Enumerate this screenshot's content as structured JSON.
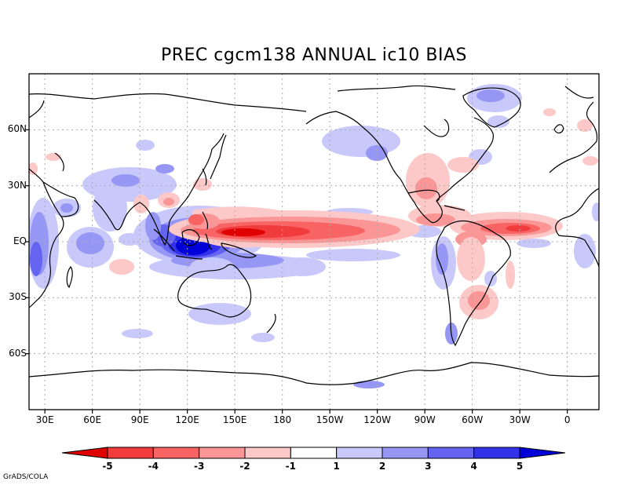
{
  "title": "PREC cgcm138 ANNUAL ic10 BIAS",
  "credit": "GrADS/COLA",
  "map": {
    "lon_range": [
      20,
      380
    ],
    "lat_range": [
      -90,
      90
    ],
    "x_ticks": [
      {
        "lon": 30,
        "label": "30E"
      },
      {
        "lon": 60,
        "label": "60E"
      },
      {
        "lon": 90,
        "label": "90E"
      },
      {
        "lon": 120,
        "label": "120E"
      },
      {
        "lon": 150,
        "label": "150E"
      },
      {
        "lon": 180,
        "label": "180"
      },
      {
        "lon": 210,
        "label": "150W"
      },
      {
        "lon": 240,
        "label": "120W"
      },
      {
        "lon": 270,
        "label": "90W"
      },
      {
        "lon": 300,
        "label": "60W"
      },
      {
        "lon": 330,
        "label": "30W"
      },
      {
        "lon": 360,
        "label": "0"
      }
    ],
    "y_ticks": [
      {
        "lat": 60,
        "label": "60N"
      },
      {
        "lat": 30,
        "label": "30N"
      },
      {
        "lat": 0,
        "label": "EQ"
      },
      {
        "lat": -30,
        "label": "30S"
      },
      {
        "lat": -60,
        "label": "60S"
      }
    ],
    "colors": {
      "dry4": "#e00000",
      "dry3": "#f03c3c",
      "dry2": "#f86464",
      "dry1": "#fa9696",
      "dry0": "#fcc8c8",
      "wet0": "#c8c8fa",
      "wet1": "#9696f5",
      "wet2": "#6464f0",
      "wet3": "#3232eb",
      "wet4": "#0000d8"
    }
  },
  "chart_data": {
    "type": "heatmap",
    "variable": "PREC",
    "model": "cgcm138",
    "season": "ANNUAL",
    "case": "ic10",
    "kind": "BIAS",
    "levels": [
      -5,
      -4,
      -3,
      -2,
      -1,
      1,
      2,
      3,
      4,
      5
    ],
    "colorbar_labels": [
      "-5",
      "-4",
      "-3",
      "-2",
      "-1",
      "1",
      "2",
      "3",
      "4",
      "5"
    ],
    "colorbar_colors": [
      "#e00000",
      "#f03c3c",
      "#f86464",
      "#fa9696",
      "#fcc8c8",
      "#ffffff",
      "#c8c8fa",
      "#9696f5",
      "#6464f0",
      "#3232eb",
      "#0000d8"
    ],
    "features": [
      {
        "region": "Pacific ITCZ 150E-170W, ~5N",
        "bias": "< -4 (dry)"
      },
      {
        "region": "Atlantic ITCZ 40W-10W, ~5N",
        "bias": "-3 to -4 (dry)"
      },
      {
        "region": "Maritime Continent 110E-140E, 5S",
        "bias": "> 5 (wet)"
      },
      {
        "region": "South Pacific Convergence Zone",
        "bias": "1 to 3 (wet)"
      },
      {
        "region": "Western Indian Ocean / East Africa",
        "bias": "1 to 3 (wet)"
      },
      {
        "region": "Central America / Gulf of Mexico",
        "bias": "-1 to -3 (dry)"
      },
      {
        "region": "Northeast Brazil / La Plata",
        "bias": "-1 to -3 (dry)"
      },
      {
        "region": "Australia / southern oceans",
        "bias": "1 to 2 (wet)"
      }
    ]
  }
}
